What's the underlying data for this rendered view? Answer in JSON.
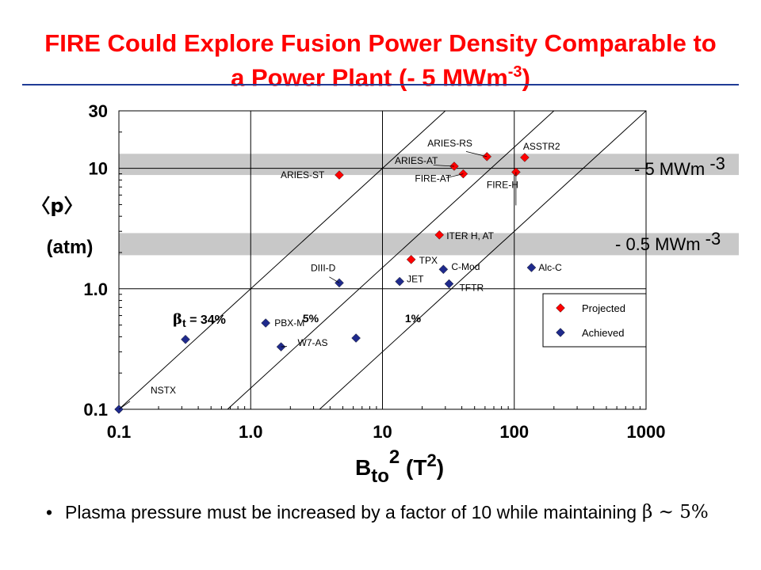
{
  "slide": {
    "title_line1": "FIRE Could Explore Fusion Power Density Comparable to",
    "title_line2_text": "a Power Plant (- 5 MWm",
    "title_line2_sup": "-3",
    "title_line2_close": ")",
    "bullet_marker": "•",
    "bullet_text": "Plasma pressure must be increased by a  factor of 10 while maintaining",
    "bullet_beta": "β ~ 5%"
  },
  "colors": {
    "title": "#ff0000",
    "rule": "#1f3c96",
    "projected": "#ff0000",
    "achieved": "#1f2a8c",
    "band": "#c8c8c8"
  },
  "chart_data": {
    "type": "scatter",
    "x_scale": "log",
    "y_scale": "log",
    "xlim": [
      0.1,
      1000
    ],
    "ylim": [
      0.1,
      30
    ],
    "x_ticks": [
      "0.1",
      "1.0",
      "10",
      "100",
      "1000"
    ],
    "y_ticks": [
      "0.1",
      "1.0",
      "10",
      "30"
    ],
    "xlabel": {
      "base": "B",
      "sub": "to",
      "sup": "2",
      "unit_open": "(T",
      "unit_sup": "2",
      "unit_close": ")"
    },
    "ylabel": {
      "line1": "〈p〉",
      "line2": "(atm)"
    },
    "grid": true,
    "bands": [
      {
        "label_text": "- 5 MWm",
        "label_sup": "-3",
        "ylim": [
          8.8,
          13.2
        ]
      },
      {
        "label_text": "- 0.5 MWm",
        "label_sup": "-3",
        "ylim": [
          1.9,
          2.9
        ]
      }
    ],
    "beta_lines": [
      {
        "label_symbol": "β",
        "label_sub": "t",
        "label_text": " = 34%",
        "intercept": 1.0
      },
      {
        "label_text": "5%",
        "intercept": 0.15
      },
      {
        "label_text": "1%",
        "intercept": 0.03
      }
    ],
    "legend": {
      "placement": "right",
      "entries": [
        {
          "name": "Projected",
          "color": "#ff0000"
        },
        {
          "name": "Achieved",
          "color": "#1f2a8c"
        }
      ]
    },
    "series": [
      {
        "name": "Projected",
        "points": [
          {
            "label": "ARIES-RS",
            "x": 62,
            "y": 12.5
          },
          {
            "label": "ASSTR2",
            "x": 120,
            "y": 12.3
          },
          {
            "label": "ARIES-AT",
            "x": 35,
            "y": 10.4
          },
          {
            "label": "FIRE-AT",
            "x": 41,
            "y": 9.0
          },
          {
            "label": "FIRE-H",
            "x": 103,
            "y": 9.3
          },
          {
            "label": "ARIES-ST",
            "x": 4.7,
            "y": 8.8
          },
          {
            "label": "ITER H, AT",
            "x": 27,
            "y": 2.8
          },
          {
            "label": "TPX",
            "x": 16.5,
            "y": 1.75
          }
        ]
      },
      {
        "name": "Achieved",
        "points": [
          {
            "label": "C-Mod",
            "x": 29,
            "y": 1.45
          },
          {
            "label": "Alc-C",
            "x": 135,
            "y": 1.5
          },
          {
            "label": "DIII-D",
            "x": 4.7,
            "y": 1.12
          },
          {
            "label": "JET",
            "x": 13.5,
            "y": 1.15
          },
          {
            "label": "TFTR",
            "x": 32,
            "y": 1.1
          },
          {
            "label": "PBX-M",
            "x": 1.3,
            "y": 0.52
          },
          {
            "label": "W7-AS",
            "x": 1.7,
            "y": 0.33
          },
          {
            "label": "",
            "x": 6.3,
            "y": 0.39
          },
          {
            "label": "",
            "x": 0.32,
            "y": 0.38
          },
          {
            "label": "NSTX",
            "x": 0.1,
            "y": 0.1
          }
        ]
      }
    ]
  }
}
